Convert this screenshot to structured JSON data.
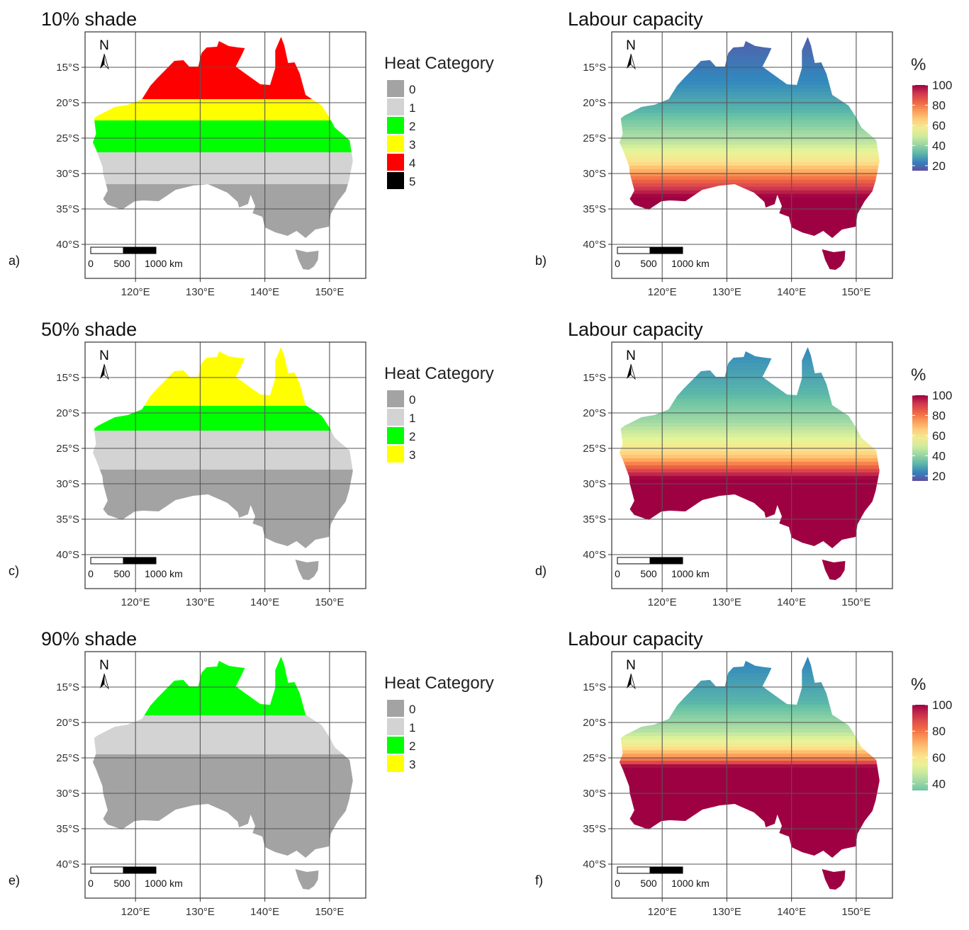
{
  "lat_ticks": [
    "15°S",
    "20°S",
    "25°S",
    "30°S",
    "35°S",
    "40°S"
  ],
  "lon_ticks": [
    "120°E",
    "130°E",
    "140°E",
    "150°E"
  ],
  "north_label": "N",
  "scale_labels": [
    "0",
    "500",
    "1000 km"
  ],
  "category_colors": [
    "#a3a3a3",
    "#d3d3d3",
    "#00ff00",
    "#ffff00",
    "#ff0000",
    "#000000"
  ],
  "gradient_colors": [
    "#5e4fa2",
    "#3288bd",
    "#66c2a5",
    "#abdda4",
    "#e6f598",
    "#fee08b",
    "#fdae61",
    "#f46d43",
    "#d53e4f",
    "#9e0142"
  ],
  "panels": [
    {
      "id": "a",
      "label": "a)",
      "title": "10% shade",
      "kind": "category",
      "legend_title": "Heat Category",
      "legend_items": [
        "0",
        "1",
        "2",
        "3",
        "4",
        "5"
      ],
      "zones": [
        {
          "category": 4,
          "lat_south": -19.5
        },
        {
          "category": 3,
          "lat_south": -22.5
        },
        {
          "category": 2,
          "lat_south": -27.0
        },
        {
          "category": 1,
          "lat_south": -31.5
        },
        {
          "category": 0,
          "lat_south": -44.0
        }
      ]
    },
    {
      "id": "b",
      "label": "b)",
      "title": "Labour capacity",
      "kind": "gradient",
      "legend_title": "%",
      "legend_ticks": [
        "100",
        "80",
        "60",
        "40",
        "20"
      ],
      "legend_min": 15,
      "legend_max": 100,
      "lat_profile": [
        [
          -11,
          18
        ],
        [
          -17,
          25
        ],
        [
          -21,
          32
        ],
        [
          -25,
          45
        ],
        [
          -28,
          60
        ],
        [
          -31,
          85
        ],
        [
          -33,
          100
        ]
      ]
    },
    {
      "id": "c",
      "label": "c)",
      "title": "50% shade",
      "kind": "category",
      "legend_title": "Heat Category",
      "legend_items": [
        "0",
        "1",
        "2",
        "3"
      ],
      "zones": [
        {
          "category": 3,
          "lat_south": -19.0
        },
        {
          "category": 2,
          "lat_south": -22.5
        },
        {
          "category": 1,
          "lat_south": -28.0
        },
        {
          "category": 0,
          "lat_south": -44.0
        }
      ]
    },
    {
      "id": "d",
      "label": "d)",
      "title": "Labour capacity",
      "kind": "gradient",
      "legend_title": "%",
      "legend_ticks": [
        "100",
        "80",
        "60",
        "40",
        "20"
      ],
      "legend_min": 15,
      "legend_max": 100,
      "lat_profile": [
        [
          -11,
          25
        ],
        [
          -17,
          32
        ],
        [
          -21,
          42
        ],
        [
          -24,
          55
        ],
        [
          -26,
          68
        ],
        [
          -28,
          90
        ],
        [
          -29,
          100
        ]
      ]
    },
    {
      "id": "e",
      "label": "e)",
      "title": "90% shade",
      "kind": "category",
      "legend_title": "Heat Category",
      "legend_items": [
        "0",
        "1",
        "2",
        "3"
      ],
      "zones": [
        {
          "category": 2,
          "lat_south": -19.0
        },
        {
          "category": 1,
          "lat_south": -24.5
        },
        {
          "category": 0,
          "lat_south": -44.0
        }
      ]
    },
    {
      "id": "f",
      "label": "f)",
      "title": "Labour capacity",
      "kind": "gradient",
      "legend_title": "%",
      "legend_ticks": [
        "100",
        "80",
        "60",
        "40"
      ],
      "legend_min": 35,
      "legend_max": 100,
      "lat_profile": [
        [
          -11,
          42
        ],
        [
          -17,
          48
        ],
        [
          -21,
          58
        ],
        [
          -23,
          68
        ],
        [
          -25,
          85
        ],
        [
          -26,
          100
        ]
      ]
    }
  ]
}
